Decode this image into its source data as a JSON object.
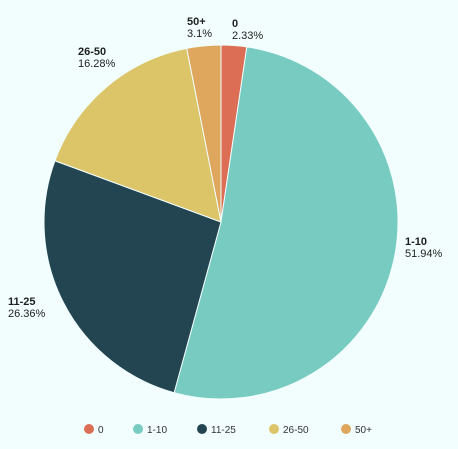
{
  "chart_data": {
    "type": "pie",
    "categories": [
      "0",
      "1-10",
      "11-25",
      "26-50",
      "50+"
    ],
    "values": [
      2.33,
      51.94,
      26.36,
      16.28,
      3.1
    ],
    "value_labels": [
      "2.33%",
      "51.94%",
      "26.36%",
      "16.28%",
      "3.1%"
    ],
    "colors": [
      "#dc6e55",
      "#77cbc1",
      "#234552",
      "#dcc468",
      "#dea75d"
    ],
    "legend_position": "bottom",
    "start_angle": "top, clockwise",
    "grid": false
  },
  "colors": {
    "background": "#f1fefd",
    "text": "#1f1f1f",
    "legend_text": "#333333"
  }
}
